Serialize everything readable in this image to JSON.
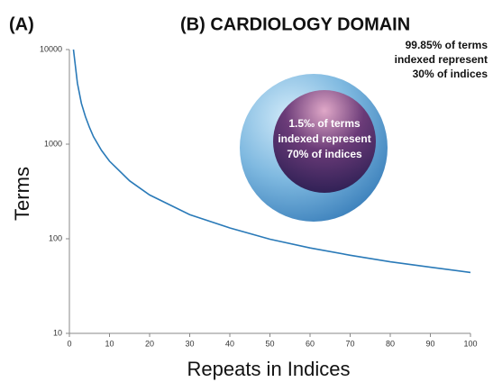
{
  "chart_data": {
    "type": "line",
    "panel_a": "(A)",
    "title": "(B)  CARDIOLOGY DOMAIN",
    "x_label": "Repeats in Indices",
    "y_label": "Terms",
    "log_y": true,
    "color": "#2a7ab8",
    "x": [
      1,
      2,
      3,
      4,
      5,
      6,
      8,
      10,
      15,
      20,
      30,
      40,
      50,
      60,
      70,
      80,
      90,
      100
    ],
    "values": [
      10000,
      4400,
      2700,
      1950,
      1500,
      1200,
      860,
      660,
      410,
      290,
      180,
      130,
      99,
      80,
      67,
      57,
      50,
      44
    ],
    "xlim": [
      0,
      100
    ],
    "xticks": [
      0,
      10,
      20,
      30,
      40,
      50,
      60,
      70,
      80,
      90,
      100
    ],
    "ylim": [
      10,
      10000
    ],
    "yticks": [
      10,
      100,
      1000,
      10000
    ],
    "annotation_outer": [
      "99.85% of terms",
      "indexed represent",
      "30% of indices"
    ],
    "annotation_inner": [
      "1.5‰ of terms",
      "indexed represent",
      "70% of indices"
    ]
  }
}
